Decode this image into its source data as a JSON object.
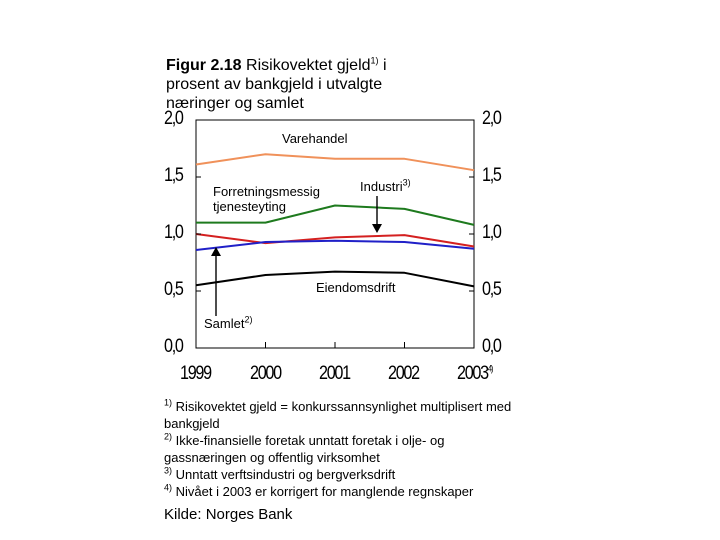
{
  "title": {
    "fig_label": "Figur 2.18",
    "text": " Risikovektet gjeld",
    "sup": "1)",
    "text2": " i prosent av bankgjeld i utvalgte næringer og samlet"
  },
  "chart_data": {
    "type": "line",
    "categories": [
      "1999",
      "2000",
      "2001",
      "2002",
      "2003"
    ],
    "x_tick_labels": [
      "1999",
      "2000",
      "2001",
      "2002",
      "2003"
    ],
    "x_last_sup": "4)",
    "ylim": [
      0,
      2
    ],
    "y_ticks_left": [
      "2,0",
      "1,5",
      "1,0",
      "0,5",
      "0,0"
    ],
    "y_ticks_right": [
      "2,0",
      "1,5",
      "1,0",
      "0,5",
      "0,0"
    ],
    "y_tick_values": [
      2.0,
      1.5,
      1.0,
      0.5,
      0.0
    ],
    "grid": false,
    "series": [
      {
        "name": "Varehandel",
        "color": "#F0915A",
        "values": [
          1.61,
          1.7,
          1.66,
          1.66,
          1.56
        ]
      },
      {
        "name": "Industri",
        "color": "#1E7A1E",
        "values": [
          1.1,
          1.1,
          1.25,
          1.22,
          1.08
        ]
      },
      {
        "name": "Forretningsmessig tjenesteyting",
        "color": "#D42020",
        "values": [
          1.0,
          0.92,
          0.97,
          0.99,
          0.89
        ]
      },
      {
        "name": "Samlet",
        "color": "#2020C8",
        "values": [
          0.86,
          0.93,
          0.94,
          0.93,
          0.87
        ]
      },
      {
        "name": "Eiendomsdrift",
        "color": "#000000",
        "values": [
          0.55,
          0.64,
          0.67,
          0.66,
          0.54
        ]
      }
    ],
    "annotations": {
      "varehandel": "Varehandel",
      "forretning_line1": "Forretningsmessig",
      "forretning_line2": "tjenesteyting",
      "industri": "Industri",
      "industri_sup": "3)",
      "eiendom": "Eiendomsdrift",
      "samlet": "Samlet",
      "samlet_sup": "2)"
    }
  },
  "footnotes": [
    {
      "mark": "1)",
      "text": " Risikovektet gjeld = konkurssannsynlighet multiplisert med bankgjeld"
    },
    {
      "mark": "2)",
      "text": " Ikke-finansielle foretak unntatt foretak i olje- og gassnæringen og offentlig virksomhet"
    },
    {
      "mark": "3)",
      "text": " Unntatt verftsindustri og bergverksdrift"
    },
    {
      "mark": "4)",
      "text": " Nivået i 2003 er korrigert for manglende regnskaper"
    }
  ],
  "source": "Kilde: Norges Bank"
}
